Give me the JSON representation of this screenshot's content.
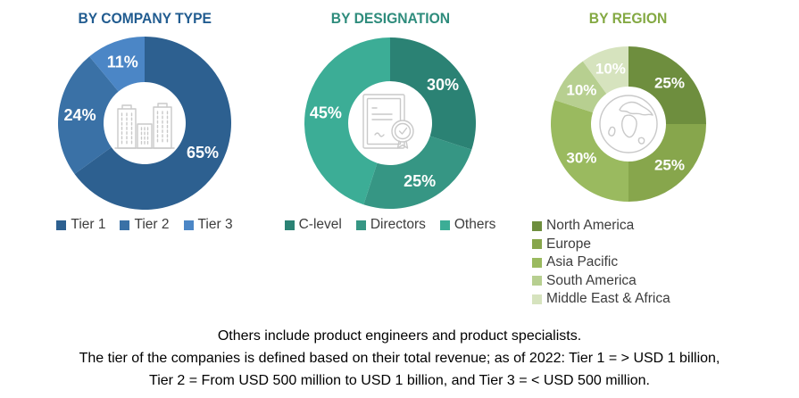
{
  "chart_data": [
    {
      "type": "donut",
      "title": "BY COMPANY TYPE",
      "title_color": "#215C90",
      "center_icon": "buildings-icon",
      "legend_position": "bottom-horizontal",
      "categories": [
        "Tier 1",
        "Tier 2",
        "Tier 3"
      ],
      "values": [
        65,
        24,
        11
      ],
      "labels": [
        "65%",
        "24%",
        "11%"
      ],
      "colors": [
        "#2D6090",
        "#3A71A6",
        "#4B86C6"
      ],
      "label_color": "#FFFFFF",
      "start_angle_deg": 0,
      "direction": "clockwise"
    },
    {
      "type": "donut",
      "title": "BY DESIGNATION",
      "title_color": "#2E8C7C",
      "center_icon": "certificate-icon",
      "legend_position": "bottom-horizontal",
      "categories": [
        "C-level",
        "Directors",
        "Others"
      ],
      "values": [
        30,
        25,
        45
      ],
      "labels": [
        "30%",
        "25%",
        "45%"
      ],
      "colors": [
        "#2B8274",
        "#369684",
        "#3CAD96"
      ],
      "label_color": "#FFFFFF",
      "start_angle_deg": 0,
      "direction": "clockwise"
    },
    {
      "type": "donut",
      "title": "BY REGION",
      "title_color": "#84A943",
      "center_icon": "globe-icon",
      "legend_position": "bottom-vertical",
      "categories": [
        "North America",
        "Europe",
        "Asia Pacific",
        "South America",
        "Middle East & Africa"
      ],
      "values": [
        25,
        25,
        30,
        10,
        10
      ],
      "labels": [
        "25%",
        "25%",
        "30%",
        "10%",
        "10%"
      ],
      "colors": [
        "#6E8E3E",
        "#87A64C",
        "#9ABA5F",
        "#B7CF90",
        "#D6E3BE"
      ],
      "label_color": "#FFFFFF",
      "start_angle_deg": 0,
      "direction": "clockwise"
    }
  ],
  "footnote": {
    "lines": [
      "Others include product engineers and product specialists.",
      "The tier of the companies is defined based on their total revenue; as of 2022: Tier 1 = > USD 1 billion,",
      "Tier 2 = From USD 500 million to USD 1 billion, and Tier 3 = < USD 500 million."
    ]
  }
}
